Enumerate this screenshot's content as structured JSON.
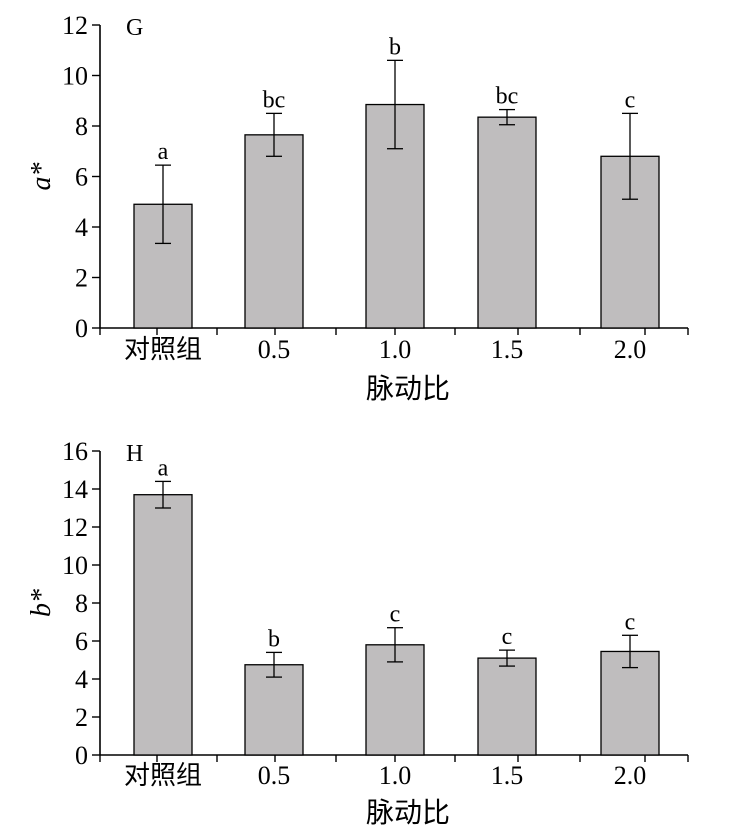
{
  "chart_data": [
    {
      "type": "bar",
      "panel_label": "G",
      "categories": [
        "对照组",
        "0.5",
        "1.0",
        "1.5",
        "2.0"
      ],
      "values": [
        4.9,
        7.65,
        8.85,
        8.35,
        6.8
      ],
      "errors": [
        1.55,
        0.85,
        1.75,
        0.3,
        1.7
      ],
      "significance": [
        "a",
        "bc",
        "b",
        "bc",
        "c"
      ],
      "xlabel": "脉动比",
      "ylabel": "a*",
      "ylim": [
        0,
        12
      ],
      "yticks": [
        0,
        2,
        4,
        6,
        8,
        10,
        12
      ],
      "bar_color": "#bfbdbe",
      "grid": false
    },
    {
      "type": "bar",
      "panel_label": "H",
      "categories": [
        "对照组",
        "0.5",
        "1.0",
        "1.5",
        "2.0"
      ],
      "values": [
        13.7,
        4.75,
        5.8,
        5.1,
        5.45
      ],
      "errors": [
        0.7,
        0.65,
        0.9,
        0.42,
        0.85
      ],
      "significance": [
        "a",
        "b",
        "c",
        "c",
        "c"
      ],
      "xlabel": "脉动比",
      "ylabel": "b*",
      "ylim": [
        0,
        16
      ],
      "yticks": [
        0,
        2,
        4,
        6,
        8,
        10,
        12,
        14,
        16
      ],
      "bar_color": "#bfbdbe",
      "grid": false
    }
  ]
}
